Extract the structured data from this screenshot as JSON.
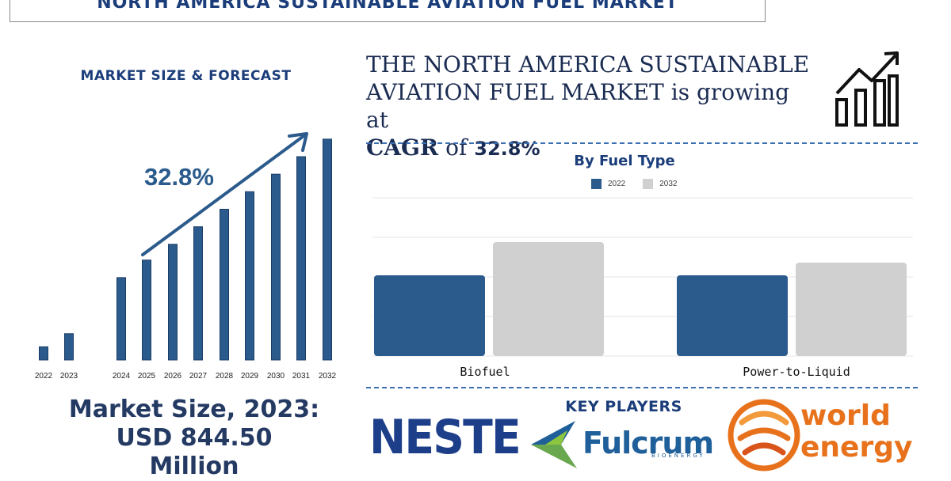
{
  "page": {
    "title": "NORTH AMERICA SUSTAINABLE AVIATION FUEL MARKET"
  },
  "forecast": {
    "heading": "MARKET SIZE & FORECAST",
    "cagr_label": "32.8%",
    "market_size_line1": "Market Size, 2023:",
    "market_size_line2": "USD 844.50",
    "market_size_line3": "Million"
  },
  "headline": {
    "line1": "THE NORTH AMERICA SUSTAINABLE",
    "line2": "AVIATION FUEL MARKET is growing at",
    "cagr_word": "CAGR",
    "of_word": "of",
    "cagr_value": "32.8%"
  },
  "key_players": {
    "heading": "KEY PLAYERS",
    "logos": [
      {
        "name": "NESTE",
        "text": "NESTE"
      },
      {
        "name": "Fulcrum",
        "text": "Fulcrum",
        "sub": "BIOENERGY"
      },
      {
        "name": "world energy",
        "line1": "world",
        "line2": "energy"
      }
    ]
  },
  "colors": {
    "navy": "#1b3d7a",
    "bar_dark": "#2b5b8c",
    "bar_light": "#d0d0d0",
    "accent_orange": "#e8721c"
  },
  "chart_data": [
    {
      "type": "bar",
      "title": "",
      "categories": [
        "2022",
        "2023",
        "2024",
        "2025",
        "2026",
        "2027",
        "2028",
        "2029",
        "2030",
        "2031",
        "2032"
      ],
      "values": [
        7.5,
        15,
        47,
        57,
        66,
        76,
        86,
        96,
        106,
        116,
        126
      ],
      "ylim": [
        0,
        130
      ],
      "grid": false,
      "annotation": "32.8%",
      "note_values": "estimated relative heights; no numeric axis shown"
    },
    {
      "type": "bar",
      "title": "By Fuel Type",
      "categories": [
        "Biofuel",
        "Power-to-Liquid"
      ],
      "series": [
        {
          "name": "2022",
          "values": [
            51,
            51
          ]
        },
        {
          "name": "2032",
          "values": [
            72,
            59
          ]
        }
      ],
      "ylim": [
        0,
        100
      ],
      "grid": true,
      "legend": "top-center"
    }
  ]
}
